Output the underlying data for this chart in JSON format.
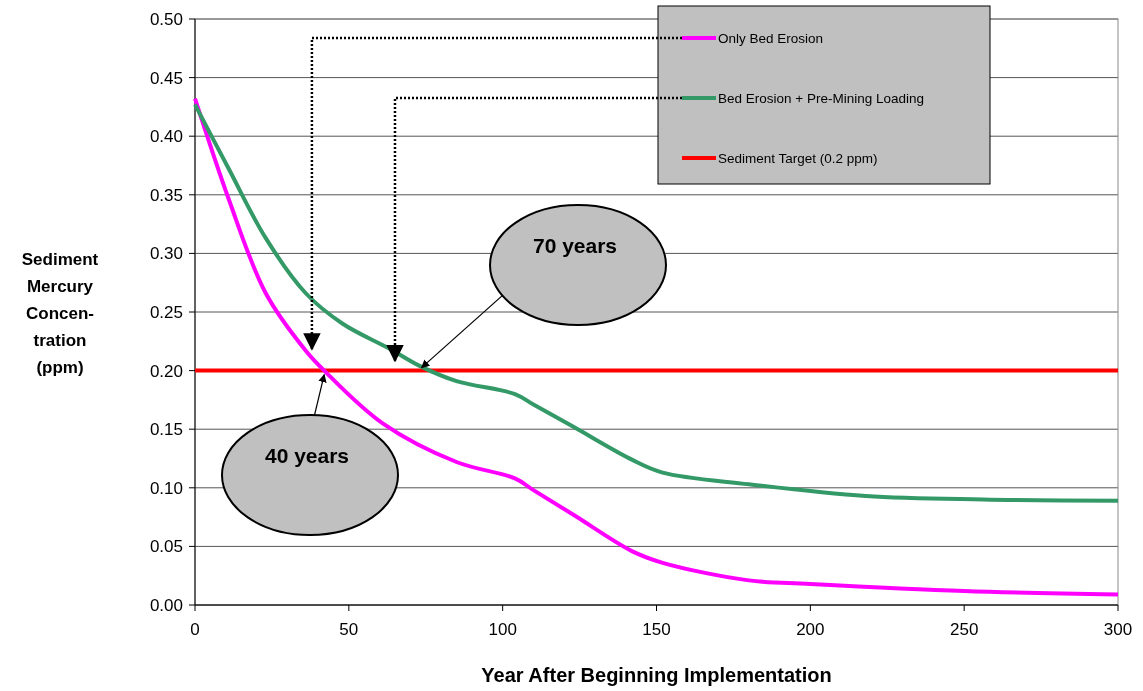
{
  "chart_data": {
    "type": "line",
    "xlabel": "Year After Beginning Implementation",
    "ylabel": "Sediment\nMercury\nConcen-\ntration\n(ppm)",
    "xlim": [
      0,
      300
    ],
    "xticks": [
      0,
      50,
      100,
      150,
      200,
      250,
      300
    ],
    "ylim": [
      0,
      0.5
    ],
    "yticks": [
      {
        "value": 0,
        "label": "0.00"
      },
      {
        "value": 0.05,
        "label": "0.05"
      },
      {
        "value": 0.1,
        "label": "0.10"
      },
      {
        "value": 0.15,
        "label": "0.15"
      },
      {
        "value": 0.2,
        "label": "0.20"
      },
      {
        "value": 0.25,
        "label": "0.25"
      },
      {
        "value": 0.3,
        "label": "0.30"
      },
      {
        "value": 0.35,
        "label": "0.35"
      },
      {
        "value": 0.4,
        "label": "0.40"
      },
      {
        "value": 0.45,
        "label": "0.45"
      },
      {
        "value": 0.5,
        "label": "0.50"
      }
    ],
    "grid": "y",
    "legend": "top right",
    "marker": "none",
    "series": [
      {
        "name": "Only Bed Erosion",
        "color": "#ff00ff",
        "x": [
          0,
          11,
          23,
          36,
          42,
          61,
          85,
          104,
          110,
          123,
          142,
          152,
          180,
          200,
          250,
          300
        ],
        "values": [
          0.432,
          0.346,
          0.266,
          0.217,
          0.2,
          0.155,
          0.122,
          0.108,
          0.098,
          0.077,
          0.046,
          0.036,
          0.021,
          0.018,
          0.012,
          0.009
        ]
      },
      {
        "name": "Bed Erosion + Pre-Mining Loading",
        "color": "#339966",
        "x": [
          0,
          11,
          23,
          36,
          48,
          63,
          73,
          85,
          104,
          110,
          123,
          142,
          152,
          180,
          218,
          256,
          300
        ],
        "values": [
          0.427,
          0.372,
          0.313,
          0.266,
          0.24,
          0.219,
          0.204,
          0.191,
          0.18,
          0.171,
          0.152,
          0.124,
          0.113,
          0.103,
          0.093,
          0.09,
          0.089
        ]
      }
    ],
    "ref_lines": [
      {
        "axis": "y",
        "value": 0.2,
        "label": "Sediment Target (0.2 ppm)",
        "color": "#ff0000"
      }
    ],
    "annotations": [
      {
        "text": "40 years",
        "x": 42,
        "y": 0.2
      },
      {
        "text": "70 years",
        "x": 73,
        "y": 0.2
      }
    ]
  }
}
